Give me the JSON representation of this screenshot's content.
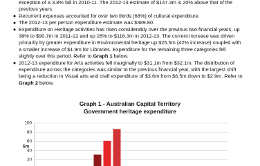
{
  "document": {
    "lead": {
      "lines": [
        [
          "exception of a 3.8% fall in 2010-11. The 2012-13 estimate of $147.3m is 20% above that of the"
        ],
        [
          "previous years."
        ]
      ]
    },
    "bullets": [
      {
        "lines": [
          [
            "Recurrent expenses accounted for over two thirds (68%) of cultural expenditure."
          ]
        ]
      },
      {
        "lines": [
          [
            "The 2012-13 per person expenditure estimate was $389.80."
          ]
        ]
      },
      {
        "lines": [
          [
            "Expenditure on Heritage activities has risen considerably over the previous two financial years, up"
          ],
          [
            "38% to $90.7m in 2011-12 and up 28% to $116.3m in 2012-13. The current increase was driven"
          ],
          [
            "primarily by greater expenditure in Environmental heritage up $25.5m (42% increase) coupled with"
          ],
          [
            "a smaller increase of $1.9m for Libraries. Expenditure for the remaining three categories fell"
          ],
          [
            "slightly over this period. Refer to ",
            "Graph 1",
            " below."
          ]
        ]
      },
      {
        "lines": [
          [
            "2012-13 expenditure for Arts activities fell marginally to $31.1m from $32.1m. The distribution of"
          ],
          [
            "expenditure across the categories was similar to the previous financial year, with the largest shift"
          ],
          [
            "being a reduction in Visual arts and craft expenditure of $3.6m from $6.5m down to $2.9m. Refer to"
          ],
          [
            "",
            "Graph 2",
            " below."
          ]
        ]
      }
    ]
  },
  "chart_data": {
    "type": "bar",
    "title": "Graph 1 - Australian Capital Territory",
    "subtitle": "Government heritage expenditure",
    "y_label": "$m",
    "categories": [
      null,
      null,
      null,
      null
    ],
    "series": [
      {
        "color": "#8e1b1b",
        "values": [
          null,
          31,
          2,
          null
        ]
      },
      {
        "color": "#e8262a",
        "values": [
          null,
          61,
          null,
          null
        ]
      },
      {
        "color": "#d03434",
        "values": [
          null,
          87,
          null,
          null
        ]
      }
    ],
    "ylim": [
      0,
      100
    ],
    "yticks": [
      0,
      20,
      40,
      60,
      80,
      100
    ],
    "grid": true
  }
}
